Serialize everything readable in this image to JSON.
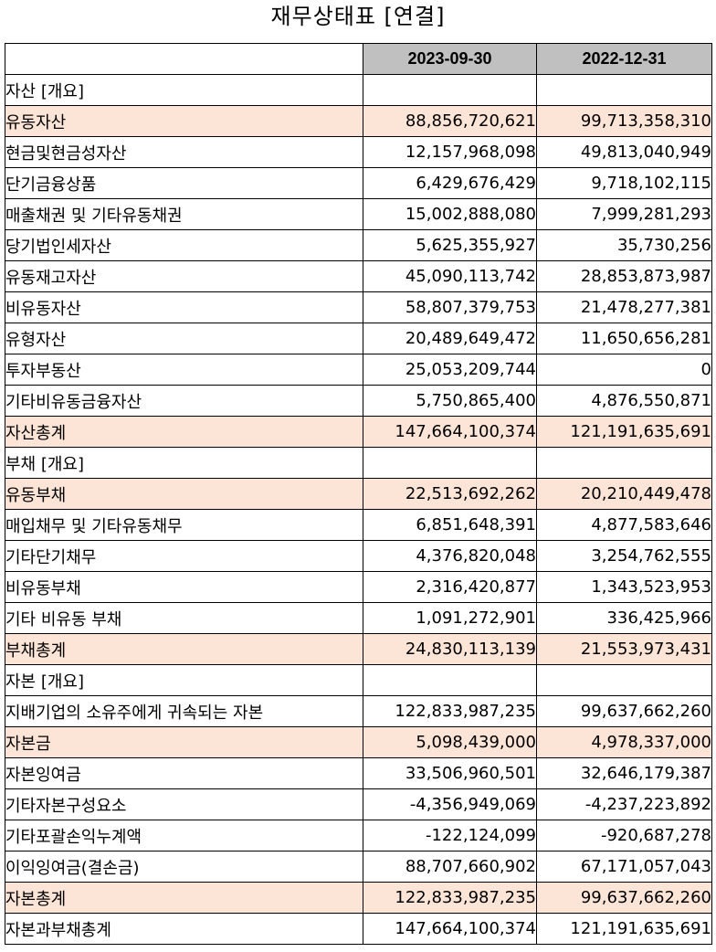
{
  "title": "재무상태표 [연결]",
  "columns": [
    "2023-09-30",
    "2022-12-31"
  ],
  "rows": [
    {
      "label": "자산 [개요]",
      "level": 0,
      "highlight": false,
      "v1": "",
      "v2": ""
    },
    {
      "label": "유동자산",
      "level": 1,
      "highlight": true,
      "v1": "88,856,720,621",
      "v2": "99,713,358,310"
    },
    {
      "label": "현금및현금성자산",
      "level": 2,
      "highlight": false,
      "v1": "12,157,968,098",
      "v2": "49,813,040,949"
    },
    {
      "label": "단기금융상품",
      "level": 2,
      "highlight": false,
      "v1": "6,429,676,429",
      "v2": "9,718,102,115"
    },
    {
      "label": "매출채권 및 기타유동채권",
      "level": 2,
      "highlight": false,
      "v1": "15,002,888,080",
      "v2": "7,999,281,293"
    },
    {
      "label": "당기법인세자산",
      "level": 2,
      "highlight": false,
      "v1": "5,625,355,927",
      "v2": "35,730,256"
    },
    {
      "label": "유동재고자산",
      "level": 2,
      "highlight": false,
      "v1": "45,090,113,742",
      "v2": "28,853,873,987"
    },
    {
      "label": "비유동자산",
      "level": 1,
      "highlight": false,
      "v1": "58,807,379,753",
      "v2": "21,478,277,381"
    },
    {
      "label": "유형자산",
      "level": 2,
      "highlight": false,
      "v1": "20,489,649,472",
      "v2": "11,650,656,281"
    },
    {
      "label": "투자부동산",
      "level": 2,
      "highlight": false,
      "v1": "25,053,209,744",
      "v2": "0"
    },
    {
      "label": "기타비유동금융자산",
      "level": 2,
      "highlight": false,
      "v1": "5,750,865,400",
      "v2": "4,876,550,871"
    },
    {
      "label": "자산총계",
      "level": 1,
      "highlight": true,
      "v1": "147,664,100,374",
      "v2": "121,191,635,691"
    },
    {
      "label": "부채 [개요]",
      "level": 0,
      "highlight": false,
      "v1": "",
      "v2": ""
    },
    {
      "label": "유동부채",
      "level": 1,
      "highlight": true,
      "v1": "22,513,692,262",
      "v2": "20,210,449,478"
    },
    {
      "label": "매입채무 및 기타유동채무",
      "level": 2,
      "highlight": false,
      "v1": "6,851,648,391",
      "v2": "4,877,583,646"
    },
    {
      "label": "기타단기채무",
      "level": 2,
      "highlight": false,
      "v1": "4,376,820,048",
      "v2": "3,254,762,555"
    },
    {
      "label": "비유동부채",
      "level": 1,
      "highlight": false,
      "v1": "2,316,420,877",
      "v2": "1,343,523,953"
    },
    {
      "label": "기타 비유동 부채",
      "level": 2,
      "highlight": false,
      "v1": "1,091,272,901",
      "v2": "336,425,966"
    },
    {
      "label": "부채총계",
      "level": 1,
      "highlight": true,
      "v1": "24,830,113,139",
      "v2": "21,553,973,431"
    },
    {
      "label": "자본 [개요]",
      "level": 0,
      "highlight": false,
      "v1": "",
      "v2": ""
    },
    {
      "label": "지배기업의 소유주에게 귀속되는 자본",
      "level": 1,
      "highlight": false,
      "v1": "122,833,987,235",
      "v2": "99,637,662,260"
    },
    {
      "label": "자본금",
      "level": 2,
      "highlight": true,
      "v1": "5,098,439,000",
      "v2": "4,978,337,000"
    },
    {
      "label": "자본잉여금",
      "level": 2,
      "highlight": false,
      "v1": "33,506,960,501",
      "v2": "32,646,179,387"
    },
    {
      "label": "기타자본구성요소",
      "level": 2,
      "highlight": false,
      "v1": "-4,356,949,069",
      "v2": "-4,237,223,892"
    },
    {
      "label": "기타포괄손익누계액",
      "level": 2,
      "highlight": false,
      "v1": "-122,124,099",
      "v2": "-920,687,278"
    },
    {
      "label": "이익잉여금(결손금)",
      "level": 2,
      "highlight": false,
      "v1": "88,707,660,902",
      "v2": "67,171,057,043"
    },
    {
      "label": "자본총계",
      "level": 1,
      "highlight": true,
      "v1": "122,833,987,235",
      "v2": "99,637,662,260"
    },
    {
      "label": "자본과부채총계",
      "level": 0,
      "highlight": false,
      "v1": "147,664,100,374",
      "v2": "121,191,635,691"
    }
  ],
  "colors": {
    "header_bg": "#c0c0c0",
    "highlight_bg": "#fce4d6",
    "border": "#000000"
  }
}
